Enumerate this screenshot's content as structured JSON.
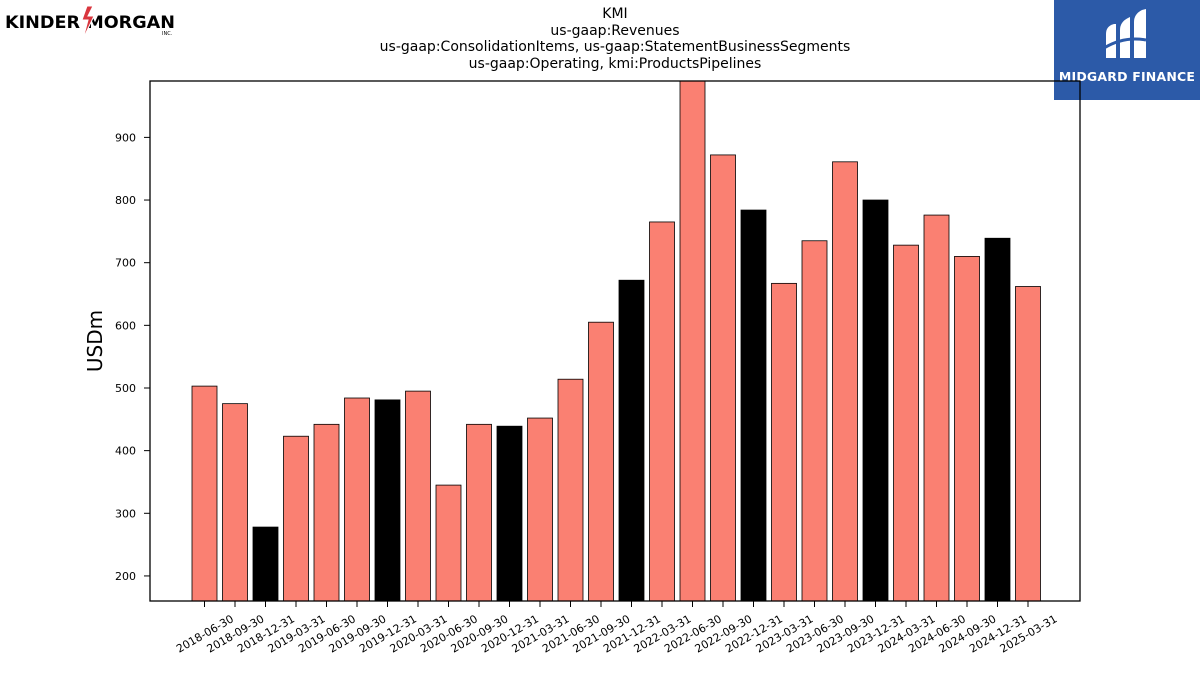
{
  "brand": {
    "left_logo_text": "KINDER MORGAN",
    "left_logo_sub": "INC.",
    "right_logo_text": "MIDGARD FINANCE"
  },
  "title_lines": [
    "KMI",
    "us-gaap:Revenues",
    "us-gaap:ConsolidationItems, us-gaap:StatementBusinessSegments",
    "us-gaap:Operating, kmi:ProductsPipelines"
  ],
  "colors": {
    "quarter_bar": "#fa8072",
    "year_end_bar": "#000000",
    "bar_edge": "#000000",
    "brand_blue": "#2c5aa8"
  },
  "chart_data": {
    "type": "bar",
    "ylabel": "USDm",
    "xlabel": "",
    "ylim": [
      160,
      990
    ],
    "yticks": [
      200,
      300,
      400,
      500,
      600,
      700,
      800,
      900
    ],
    "grid": false,
    "categories": [
      "2018-06-30",
      "2018-09-30",
      "2018-12-31",
      "2019-03-31",
      "2019-06-30",
      "2019-09-30",
      "2019-12-31",
      "2020-03-31",
      "2020-06-30",
      "2020-09-30",
      "2020-12-31",
      "2021-03-31",
      "2021-06-30",
      "2021-09-30",
      "2021-12-31",
      "2022-03-31",
      "2022-06-30",
      "2022-09-30",
      "2022-12-31",
      "2023-03-31",
      "2023-06-30",
      "2023-09-30",
      "2023-12-31",
      "2024-03-31",
      "2024-06-30",
      "2024-09-30",
      "2024-12-31",
      "2025-03-31"
    ],
    "values": [
      503,
      475,
      278,
      423,
      442,
      484,
      481,
      495,
      345,
      442,
      439,
      452,
      514,
      605,
      672,
      765,
      990,
      872,
      784,
      667,
      735,
      861,
      800,
      728,
      776,
      710,
      739,
      662
    ],
    "year_end_highlight": [
      false,
      false,
      true,
      false,
      false,
      false,
      true,
      false,
      false,
      false,
      true,
      false,
      false,
      false,
      true,
      false,
      false,
      false,
      true,
      false,
      false,
      false,
      true,
      false,
      false,
      false,
      true,
      false
    ]
  }
}
